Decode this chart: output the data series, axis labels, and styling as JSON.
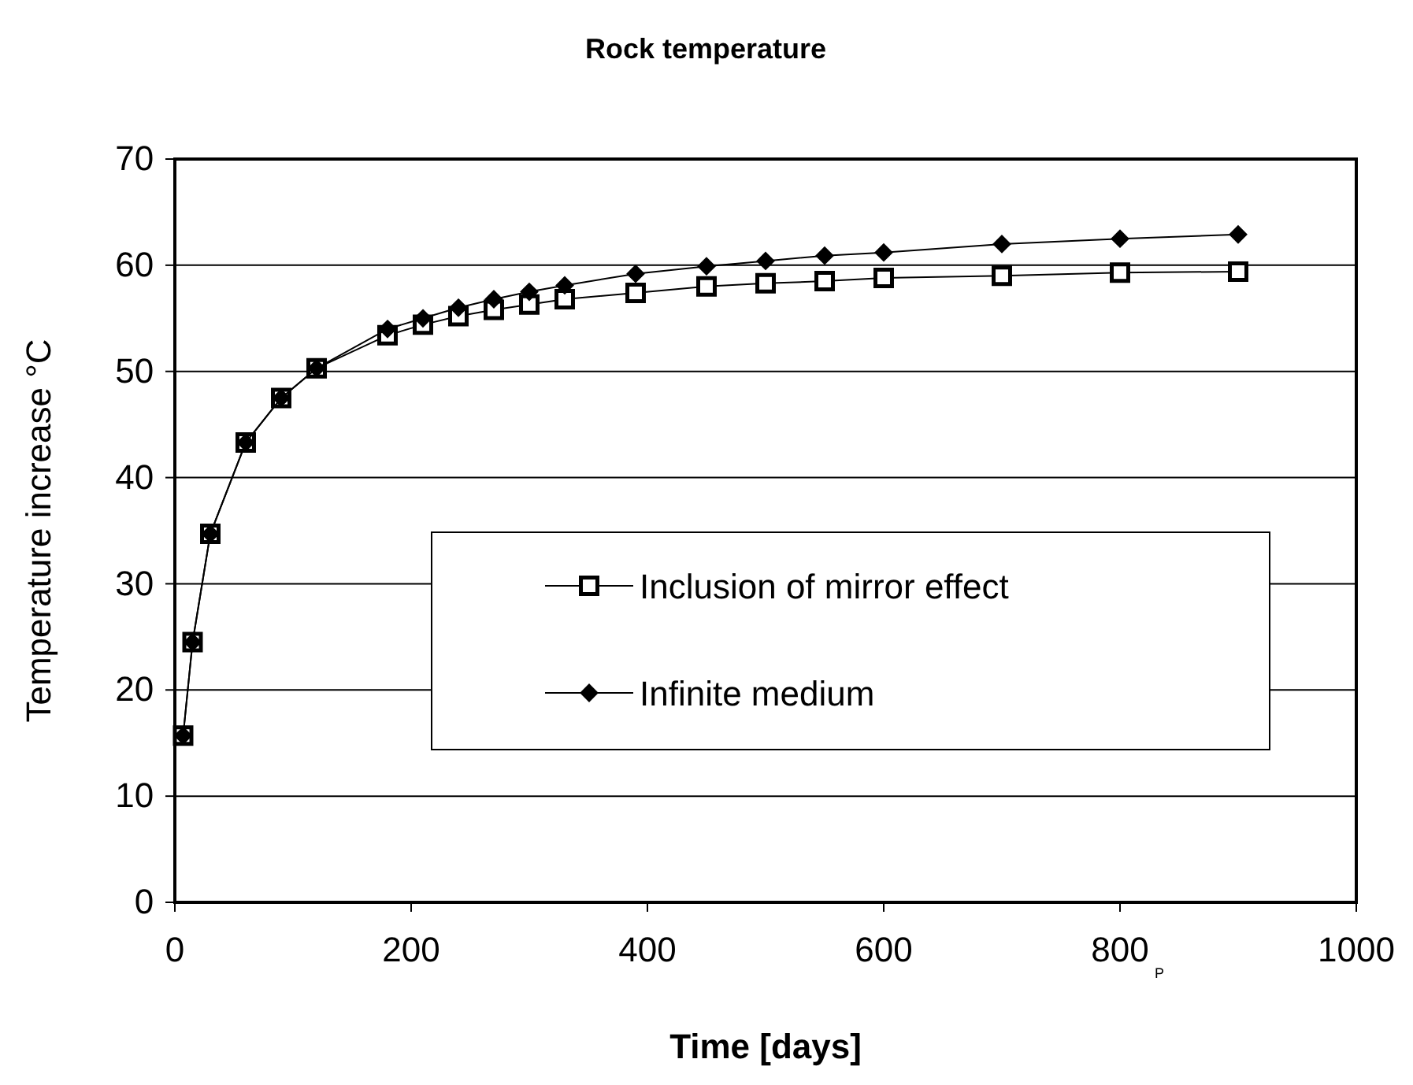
{
  "chart_data": {
    "type": "line",
    "title": "Rock temperature",
    "xlabel": "Time [days]",
    "ylabel": "Temperature increase °C",
    "x": [
      7,
      15,
      30,
      60,
      90,
      120,
      180,
      210,
      240,
      270,
      300,
      330,
      390,
      450,
      500,
      550,
      600,
      700,
      800,
      900
    ],
    "series": [
      {
        "name": "Inclusion of mirror effect",
        "color": "#000000",
        "marker": "square",
        "values": [
          15.7,
          24.5,
          34.7,
          43.3,
          47.5,
          50.3,
          53.4,
          54.4,
          55.2,
          55.8,
          56.3,
          56.8,
          57.4,
          58.0,
          58.3,
          58.5,
          58.8,
          59.0,
          59.3,
          59.4
        ]
      },
      {
        "name": "Infinite medium",
        "color": "#000000",
        "marker": "diamond",
        "values": [
          15.7,
          24.5,
          34.7,
          43.3,
          47.5,
          50.3,
          54.0,
          55.0,
          56.0,
          56.8,
          57.5,
          58.1,
          59.2,
          59.9,
          60.4,
          60.9,
          61.2,
          62.0,
          62.5,
          62.9
        ]
      }
    ],
    "xlim": [
      0,
      1000
    ],
    "xticks": [
      0,
      200,
      400,
      600,
      800,
      1000
    ],
    "ylim": [
      0,
      70
    ],
    "yticks": [
      0,
      10,
      20,
      30,
      40,
      50,
      60,
      70
    ],
    "grid": "y",
    "legend": "right",
    "line_style": "solid",
    "annotations": [
      "P"
    ]
  }
}
